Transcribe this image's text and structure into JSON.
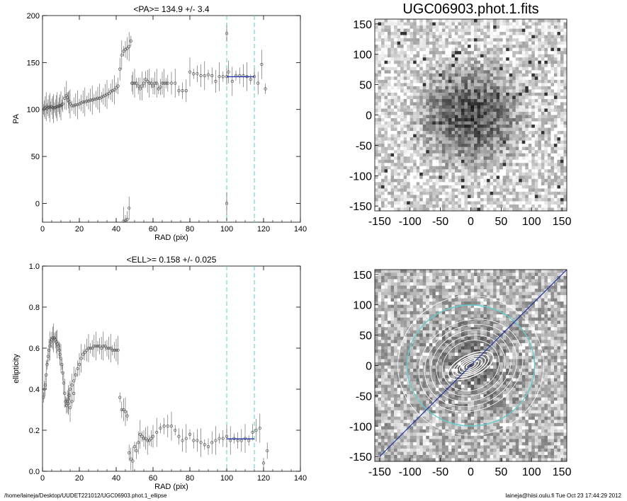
{
  "footer": {
    "path": "/home/laineja/Desktop/UUDET221012/UGC06903.phot.1_ellipse",
    "user_time": "laineja@hiisi.oulu.fi  Tue Oct 23 17:44:29 2012"
  },
  "colors": {
    "data": "#555555",
    "fit": "#2233aa",
    "marker": "#55cccc",
    "ellipse": "#ffffff",
    "ring": "#66cccc",
    "axis_line": "#2233aa"
  },
  "chart_data": [
    {
      "type": "scatter",
      "title": "<PA>= 134.9 +/-   3.4",
      "xlabel": "RAD (pix)",
      "ylabel": "PA",
      "xlim": [
        0,
        140
      ],
      "ylim": [
        -20,
        200
      ],
      "xticks": [
        0,
        20,
        40,
        60,
        80,
        100,
        120,
        140
      ],
      "yticks": [
        0,
        50,
        100,
        150,
        200
      ],
      "vlines": [
        100,
        115
      ],
      "fit_segment": {
        "x": [
          100,
          115
        ],
        "y": [
          134.9,
          134.9
        ]
      },
      "points": [
        [
          0.5,
          100
        ],
        [
          1,
          101
        ],
        [
          1.5,
          102
        ],
        [
          2,
          103
        ],
        [
          2.5,
          101
        ],
        [
          3,
          102
        ],
        [
          3.5,
          103
        ],
        [
          4,
          102
        ],
        [
          4.5,
          103
        ],
        [
          5,
          103
        ],
        [
          5.5,
          102
        ],
        [
          6,
          101
        ],
        [
          6.5,
          102
        ],
        [
          7,
          102
        ],
        [
          7.5,
          103
        ],
        [
          8,
          103
        ],
        [
          8.5,
          103
        ],
        [
          9,
          104
        ],
        [
          9.5,
          104
        ],
        [
          10,
          104
        ],
        [
          10.5,
          105
        ],
        [
          11,
          106
        ],
        [
          12,
          112
        ],
        [
          13,
          115
        ],
        [
          13.5,
          113
        ],
        [
          14,
          110
        ],
        [
          14.5,
          108
        ],
        [
          15,
          106
        ],
        [
          16,
          104
        ],
        [
          17,
          104
        ],
        [
          18,
          105
        ],
        [
          19,
          105
        ],
        [
          20,
          106
        ],
        [
          21,
          107
        ],
        [
          22,
          108
        ],
        [
          23,
          108
        ],
        [
          24,
          109
        ],
        [
          25,
          109
        ],
        [
          26,
          110
        ],
        [
          27,
          110
        ],
        [
          28,
          111
        ],
        [
          29,
          111
        ],
        [
          30,
          112
        ],
        [
          31,
          112
        ],
        [
          32,
          113
        ],
        [
          33,
          114
        ],
        [
          34,
          115
        ],
        [
          35,
          116
        ],
        [
          36,
          117
        ],
        [
          37,
          119
        ],
        [
          38,
          120
        ],
        [
          39,
          121
        ],
        [
          40,
          123
        ],
        [
          41,
          125
        ],
        [
          42,
          143
        ],
        [
          43,
          158
        ],
        [
          44,
          162
        ],
        [
          45,
          164
        ],
        [
          46,
          165
        ],
        [
          47,
          167
        ],
        [
          48,
          173
        ],
        [
          48.5,
          128
        ],
        [
          49,
          128
        ],
        [
          50,
          128
        ],
        [
          51,
          128
        ],
        [
          52,
          125
        ],
        [
          53,
          122
        ],
        [
          54,
          125
        ],
        [
          55,
          128
        ],
        [
          56,
          132
        ],
        [
          57,
          130
        ],
        [
          58,
          128
        ],
        [
          59,
          128
        ],
        [
          60,
          125
        ],
        [
          61,
          128
        ],
        [
          62,
          128
        ],
        [
          63,
          122
        ],
        [
          64,
          124
        ],
        [
          65,
          128
        ],
        [
          66,
          128
        ],
        [
          67,
          128
        ],
        [
          68,
          128
        ],
        [
          70,
          128
        ],
        [
          72,
          128
        ],
        [
          74,
          120
        ],
        [
          76,
          120
        ],
        [
          78,
          120
        ],
        [
          80,
          140
        ],
        [
          82,
          138
        ],
        [
          84,
          138
        ],
        [
          86,
          136
        ],
        [
          88,
          136
        ],
        [
          90,
          137
        ],
        [
          92,
          136
        ],
        [
          94,
          130
        ],
        [
          96,
          135
        ],
        [
          98,
          135
        ],
        [
          100,
          135
        ],
        [
          101,
          140
        ],
        [
          103,
          130
        ],
        [
          105,
          136
        ],
        [
          107,
          136
        ],
        [
          109,
          136
        ],
        [
          111,
          135
        ],
        [
          113,
          132
        ],
        [
          115,
          135
        ],
        [
          117,
          128
        ],
        [
          119,
          148
        ],
        [
          121,
          122
        ],
        [
          100,
          181
        ],
        [
          100,
          0
        ],
        [
          44,
          -19
        ],
        [
          45,
          -18
        ],
        [
          46,
          -17
        ],
        [
          47,
          -5
        ]
      ]
    },
    {
      "type": "scatter",
      "title": "<ELL>= 0.158 +/-  0.025",
      "xlabel": "RAD (pix)",
      "ylabel": "ellipticity",
      "xlim": [
        0,
        140
      ],
      "ylim": [
        0.0,
        1.0
      ],
      "xticks": [
        0,
        20,
        40,
        60,
        80,
        100,
        120,
        140
      ],
      "yticks": [
        0.0,
        0.2,
        0.4,
        0.6,
        0.8,
        1.0
      ],
      "vlines": [
        100,
        115
      ],
      "fit_segment": {
        "x": [
          100,
          115
        ],
        "y": [
          0.158,
          0.158
        ]
      },
      "points": [
        [
          0.5,
          0.36
        ],
        [
          1,
          0.4
        ],
        [
          1.5,
          0.42
        ],
        [
          2,
          0.47
        ],
        [
          2.5,
          0.52
        ],
        [
          3,
          0.56
        ],
        [
          3.5,
          0.59
        ],
        [
          4,
          0.61
        ],
        [
          4.5,
          0.63
        ],
        [
          5,
          0.64
        ],
        [
          5.5,
          0.65
        ],
        [
          6,
          0.65
        ],
        [
          6.5,
          0.65
        ],
        [
          7,
          0.64
        ],
        [
          7.5,
          0.63
        ],
        [
          8,
          0.62
        ],
        [
          8.5,
          0.61
        ],
        [
          9,
          0.59
        ],
        [
          9.5,
          0.57
        ],
        [
          10,
          0.55
        ],
        [
          10.5,
          0.52
        ],
        [
          11,
          0.48
        ],
        [
          11.5,
          0.43
        ],
        [
          12,
          0.38
        ],
        [
          12.5,
          0.34
        ],
        [
          13,
          0.32
        ],
        [
          13.5,
          0.34
        ],
        [
          14,
          0.35
        ],
        [
          14.5,
          0.37
        ],
        [
          15,
          0.4
        ],
        [
          16,
          0.42
        ],
        [
          17,
          0.44
        ],
        [
          18,
          0.47
        ],
        [
          19,
          0.5
        ],
        [
          20,
          0.52
        ],
        [
          21,
          0.55
        ],
        [
          22,
          0.57
        ],
        [
          23,
          0.58
        ],
        [
          24,
          0.59
        ],
        [
          25,
          0.6
        ],
        [
          26,
          0.6
        ],
        [
          27,
          0.6
        ],
        [
          28,
          0.61
        ],
        [
          29,
          0.61
        ],
        [
          30,
          0.61
        ],
        [
          31,
          0.61
        ],
        [
          32,
          0.6
        ],
        [
          33,
          0.61
        ],
        [
          34,
          0.61
        ],
        [
          35,
          0.6
        ],
        [
          36,
          0.6
        ],
        [
          37,
          0.6
        ],
        [
          38,
          0.59
        ],
        [
          39,
          0.59
        ],
        [
          40,
          0.59
        ],
        [
          41,
          0.59
        ],
        [
          42,
          0.36
        ],
        [
          43,
          0.3
        ],
        [
          44,
          0.3
        ],
        [
          45,
          0.29
        ],
        [
          46,
          0.27
        ],
        [
          47,
          0.09
        ],
        [
          48,
          0.06
        ],
        [
          49,
          0.05
        ],
        [
          50,
          0.12
        ],
        [
          51,
          0.1
        ],
        [
          52,
          0.14
        ],
        [
          53,
          0.18
        ],
        [
          54,
          0.17
        ],
        [
          55,
          0.16
        ],
        [
          56,
          0.16
        ],
        [
          57,
          0.15
        ],
        [
          58,
          0.15
        ],
        [
          59,
          0.16
        ],
        [
          60,
          0.17
        ],
        [
          62,
          0.19
        ],
        [
          64,
          0.21
        ],
        [
          66,
          0.22
        ],
        [
          68,
          0.22
        ],
        [
          70,
          0.22
        ],
        [
          72,
          0.2
        ],
        [
          74,
          0.17
        ],
        [
          76,
          0.15
        ],
        [
          78,
          0.16
        ],
        [
          80,
          0.18
        ],
        [
          82,
          0.15
        ],
        [
          84,
          0.15
        ],
        [
          86,
          0.14
        ],
        [
          88,
          0.13
        ],
        [
          90,
          0.12
        ],
        [
          92,
          0.14
        ],
        [
          94,
          0.15
        ],
        [
          96,
          0.16
        ],
        [
          98,
          0.16
        ],
        [
          100,
          0.17
        ],
        [
          102,
          0.15
        ],
        [
          104,
          0.16
        ],
        [
          106,
          0.15
        ],
        [
          108,
          0.15
        ],
        [
          110,
          0.16
        ],
        [
          112,
          0.15
        ],
        [
          114,
          0.19
        ],
        [
          116,
          0.2
        ],
        [
          118,
          0.21
        ],
        [
          120,
          0.04
        ],
        [
          122,
          0.1
        ],
        [
          14,
          0.33
        ],
        [
          15,
          0.31
        ],
        [
          16,
          0.34
        ],
        [
          17,
          0.38
        ]
      ]
    }
  ],
  "image_panels": [
    {
      "title": "UGC06903.phot.1.fits",
      "xticks": [
        -150,
        -100,
        -50,
        0,
        50,
        100,
        150
      ],
      "yticks": [
        -150,
        -100,
        -50,
        0,
        50,
        100,
        150
      ],
      "xlim": [
        -158,
        158
      ],
      "ylim": [
        -158,
        158
      ]
    },
    {
      "title": "",
      "xticks": [
        -150,
        -100,
        -50,
        0,
        50,
        100,
        150
      ],
      "yticks": [
        -150,
        -100,
        -50,
        0,
        50,
        100,
        150
      ],
      "xlim": [
        -158,
        158
      ],
      "ylim": [
        -158,
        158
      ],
      "ring_radius": 105,
      "overlay_pa": 135,
      "overlay_ell": 0.158
    }
  ]
}
